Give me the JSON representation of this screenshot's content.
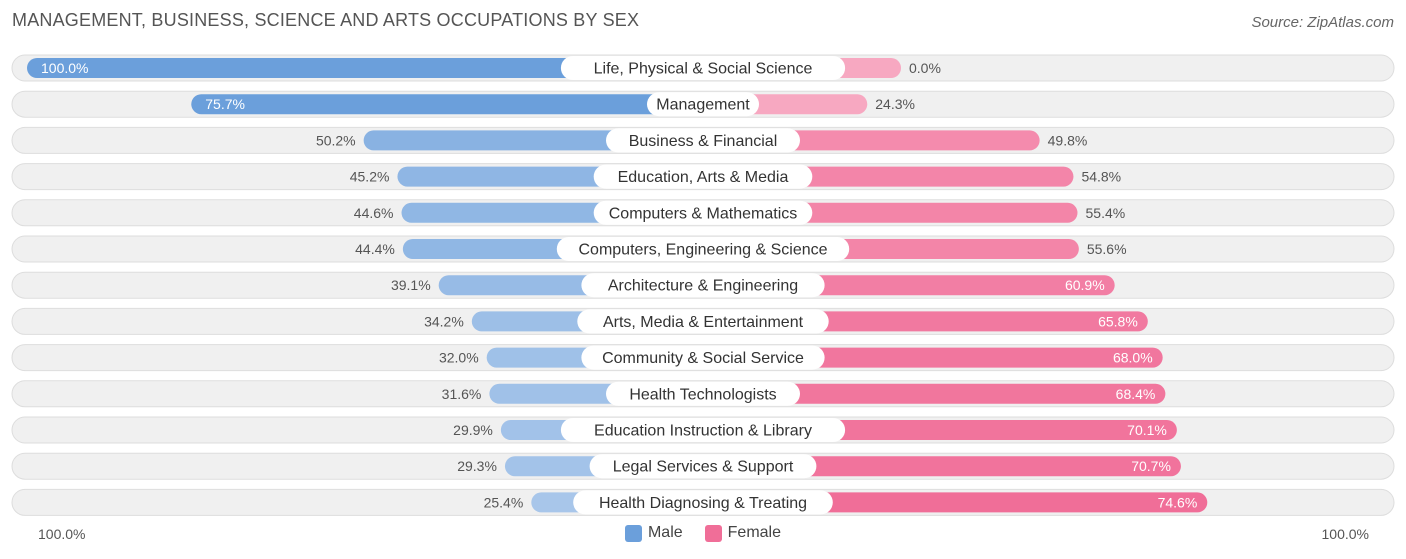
{
  "header": {
    "title": "MANAGEMENT, BUSINESS, SCIENCE AND ARTS OCCUPATIONS BY SEX",
    "source": "Source: ZipAtlas.com"
  },
  "axis": {
    "left_label": "100.0%",
    "right_label": "100.0%"
  },
  "legend": {
    "male": "Male",
    "female": "Female"
  },
  "colors": {
    "male": "#6b9fdb",
    "male_light": "#a8c6ea",
    "female": "#f06e98",
    "female_light": "#f7a8c1",
    "row_bg": "#f0f0f0"
  },
  "chart_data": {
    "type": "bar",
    "orientation": "horizontal-diverging",
    "title": "MANAGEMENT, BUSINESS, SCIENCE AND ARTS OCCUPATIONS BY SEX",
    "xlim": [
      0,
      100
    ],
    "unit": "%",
    "categories": [
      "Life, Physical & Social Science",
      "Management",
      "Business & Financial",
      "Education, Arts & Media",
      "Computers & Mathematics",
      "Computers, Engineering & Science",
      "Architecture & Engineering",
      "Arts, Media & Entertainment",
      "Community & Social Service",
      "Health Technologists",
      "Education Instruction & Library",
      "Legal Services & Support",
      "Health Diagnosing & Treating"
    ],
    "series": [
      {
        "name": "Male",
        "values": [
          100.0,
          75.7,
          50.2,
          45.2,
          44.6,
          44.4,
          39.1,
          34.2,
          32.0,
          31.6,
          29.9,
          29.3,
          25.4
        ],
        "labels": [
          "100.0%",
          "75.7%",
          "50.2%",
          "45.2%",
          "44.6%",
          "44.4%",
          "39.1%",
          "34.2%",
          "32.0%",
          "31.6%",
          "29.9%",
          "29.3%",
          "25.4%"
        ]
      },
      {
        "name": "Female",
        "values": [
          0.0,
          24.3,
          49.8,
          54.8,
          55.4,
          55.6,
          60.9,
          65.8,
          68.0,
          68.4,
          70.1,
          70.7,
          74.6
        ],
        "labels": [
          "0.0%",
          "24.3%",
          "49.8%",
          "54.8%",
          "55.4%",
          "55.6%",
          "60.9%",
          "65.8%",
          "68.0%",
          "68.4%",
          "70.1%",
          "70.7%",
          "74.6%"
        ]
      }
    ]
  }
}
